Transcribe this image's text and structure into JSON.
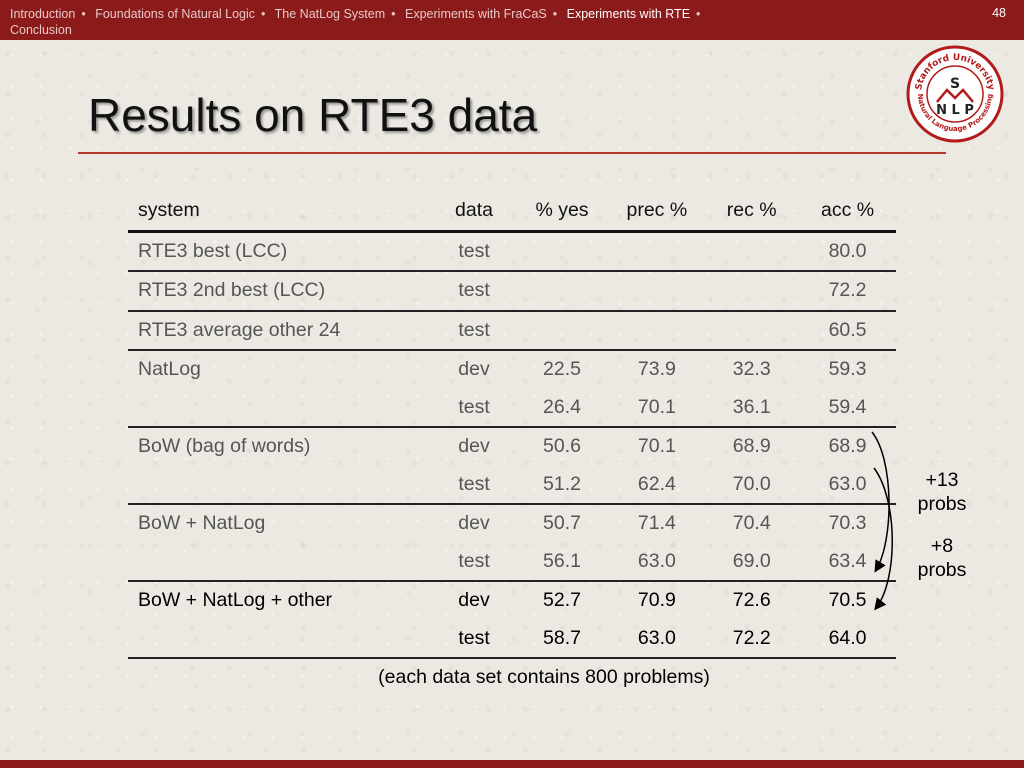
{
  "nav": {
    "items": [
      "Introduction",
      "Foundations of Natural Logic",
      "The NatLog System",
      "Experiments with FraCaS",
      "Experiments with RTE",
      "Conclusion"
    ],
    "current_index": 4,
    "separator": "•"
  },
  "page_number": "48",
  "logo": {
    "top_text": "Stanford University",
    "bottom_text": "Natural Language Processing",
    "letters": "S",
    "letters2": "N L P"
  },
  "title": "Results on RTE3 data",
  "table": {
    "headers": [
      "system",
      "data",
      "% yes",
      "prec %",
      "rec %",
      "acc %"
    ],
    "rows": [
      {
        "system": "RTE3 best (LCC)",
        "data": "test",
        "yes": "",
        "prec": "",
        "rec": "",
        "acc": "80.0"
      },
      {
        "system": "RTE3 2nd best (LCC)",
        "data": "test",
        "yes": "",
        "prec": "",
        "rec": "",
        "acc": "72.2"
      },
      {
        "system": "RTE3 average other 24",
        "data": "test",
        "yes": "",
        "prec": "",
        "rec": "",
        "acc": "60.5"
      },
      {
        "system": "NatLog",
        "data": "dev",
        "yes": "22.5",
        "prec": "73.9",
        "rec": "32.3",
        "acc": "59.3"
      },
      {
        "system": "",
        "data": "test",
        "yes": "26.4",
        "prec": "70.1",
        "rec": "36.1",
        "acc": "59.4"
      },
      {
        "system": "BoW (bag of words)",
        "data": "dev",
        "yes": "50.6",
        "prec": "70.1",
        "rec": "68.9",
        "acc": "68.9"
      },
      {
        "system": "",
        "data": "test",
        "yes": "51.2",
        "prec": "62.4",
        "rec": "70.0",
        "acc": "63.0"
      },
      {
        "system": "BoW + NatLog",
        "data": "dev",
        "yes": "50.7",
        "prec": "71.4",
        "rec": "70.4",
        "acc": "70.3"
      },
      {
        "system": "",
        "data": "test",
        "yes": "56.1",
        "prec": "63.0",
        "rec": "69.0",
        "acc": "63.4"
      },
      {
        "system": "BoW + NatLog + other",
        "data": "dev",
        "yes": "52.7",
        "prec": "70.9",
        "rec": "72.6",
        "acc": "70.5"
      },
      {
        "system": "",
        "data": "test",
        "yes": "58.7",
        "prec": "63.0",
        "rec": "72.2",
        "acc": "64.0"
      }
    ]
  },
  "notes": {
    "gain1_line1": "+13",
    "gain1_line2": "probs",
    "gain2_line1": "+8",
    "gain2_line2": "probs"
  },
  "footnote": "(each data set contains 800 problems)",
  "colors": {
    "accent": "#8b1a1a",
    "rule": "#b33a2a"
  }
}
